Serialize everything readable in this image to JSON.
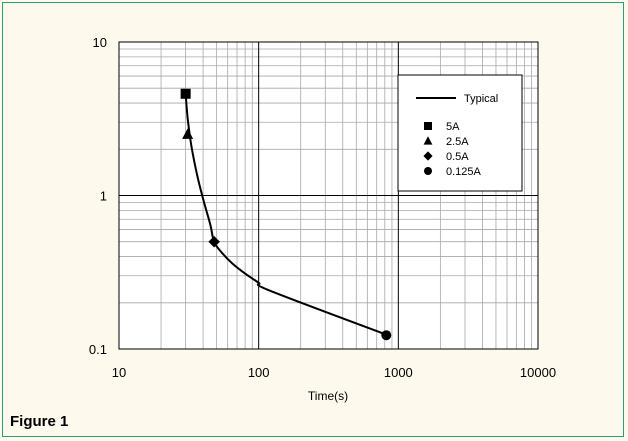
{
  "figure_label": "Figure 1",
  "chart_data": {
    "type": "line",
    "title": "",
    "xlabel": "Time(s)",
    "ylabel": "",
    "x_scale": "log",
    "y_scale": "log",
    "xlim": [
      10,
      10000
    ],
    "ylim": [
      0.1,
      10
    ],
    "x_ticks": [
      10,
      100,
      1000,
      10000
    ],
    "x_tick_labels": [
      "10",
      "100",
      "1000",
      "10000"
    ],
    "y_ticks": [
      0.1,
      1,
      10
    ],
    "y_tick_labels": [
      "0.1",
      "1",
      "10"
    ],
    "grid": true,
    "legend_position": "top-right",
    "curve": {
      "name": "Typical",
      "x": [
        30,
        31,
        33,
        36,
        40,
        45,
        48,
        55,
        65,
        80,
        100,
        120,
        800
      ],
      "y": [
        4.6,
        3.2,
        2.1,
        1.4,
        0.95,
        0.65,
        0.5,
        0.42,
        0.36,
        0.31,
        0.27,
        0.24,
        0.125
      ]
    },
    "markers": [
      {
        "name": "5A",
        "shape": "square",
        "x": 30,
        "y": 4.6
      },
      {
        "name": "2.5A",
        "shape": "triangle",
        "x": 31,
        "y": 2.5
      },
      {
        "name": "0.5A",
        "shape": "diamond",
        "x": 48,
        "y": 0.5
      },
      {
        "name": "0.125A",
        "shape": "circle",
        "x": 820,
        "y": 0.123
      }
    ]
  }
}
